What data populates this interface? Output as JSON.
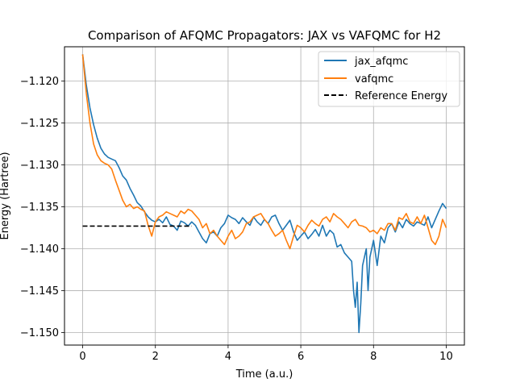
{
  "chart_data": {
    "type": "line",
    "title": "Comparison of AFQMC Propagators: JAX vs VAFQMC for H2",
    "xlabel": "Time (a.u.)",
    "ylabel": "Energy (Hartree)",
    "xlim": [
      -0.5,
      10.5
    ],
    "ylim": [
      -1.1515,
      -1.1159
    ],
    "xticks": [
      0,
      2,
      4,
      6,
      8,
      10
    ],
    "yticks": [
      -1.12,
      -1.125,
      -1.13,
      -1.135,
      -1.14,
      -1.145,
      -1.15
    ],
    "xtick_labels": [
      "0",
      "2",
      "4",
      "6",
      "8",
      "10"
    ],
    "ytick_labels": [
      "−1.120",
      "−1.125",
      "−1.130",
      "−1.135",
      "−1.140",
      "−1.145",
      "−1.150"
    ],
    "grid": true,
    "legend_position": "upper-right",
    "series": [
      {
        "name": "jax_afqmc",
        "color": "#1f77b4",
        "style": "solid",
        "x": [
          0,
          0.1,
          0.2,
          0.3,
          0.4,
          0.5,
          0.6,
          0.7,
          0.8,
          0.9,
          1.0,
          1.1,
          1.2,
          1.3,
          1.4,
          1.5,
          1.6,
          1.7,
          1.8,
          1.9,
          2.0,
          2.1,
          2.2,
          2.3,
          2.4,
          2.5,
          2.6,
          2.7,
          2.8,
          2.9,
          3.0,
          3.1,
          3.2,
          3.3,
          3.4,
          3.5,
          3.6,
          3.7,
          3.8,
          3.9,
          4.0,
          4.1,
          4.2,
          4.3,
          4.4,
          4.5,
          4.6,
          4.7,
          4.8,
          4.9,
          5.0,
          5.1,
          5.2,
          5.3,
          5.4,
          5.5,
          5.6,
          5.7,
          5.8,
          5.9,
          6.0,
          6.1,
          6.2,
          6.3,
          6.4,
          6.5,
          6.6,
          6.7,
          6.8,
          6.9,
          7.0,
          7.1,
          7.2,
          7.3,
          7.4,
          7.45,
          7.5,
          7.55,
          7.6,
          7.65,
          7.7,
          7.8,
          7.85,
          7.9,
          8.0,
          8.1,
          8.2,
          8.3,
          8.4,
          8.5,
          8.6,
          8.7,
          8.8,
          8.9,
          9.0,
          9.1,
          9.2,
          9.3,
          9.4,
          9.5,
          9.6,
          9.7,
          9.8,
          9.9,
          10.0
        ],
        "y": [
          -1.1168,
          -1.1205,
          -1.1232,
          -1.1252,
          -1.1268,
          -1.128,
          -1.1287,
          -1.1291,
          -1.1293,
          -1.1295,
          -1.1303,
          -1.1313,
          -1.1318,
          -1.1328,
          -1.1336,
          -1.1345,
          -1.1349,
          -1.1356,
          -1.1362,
          -1.1366,
          -1.1368,
          -1.1365,
          -1.1369,
          -1.1362,
          -1.1371,
          -1.1373,
          -1.1378,
          -1.1367,
          -1.1369,
          -1.1373,
          -1.1368,
          -1.1372,
          -1.138,
          -1.1388,
          -1.1393,
          -1.1382,
          -1.138,
          -1.1385,
          -1.1375,
          -1.137,
          -1.136,
          -1.1363,
          -1.1365,
          -1.137,
          -1.1363,
          -1.1368,
          -1.1372,
          -1.1362,
          -1.1368,
          -1.1372,
          -1.1365,
          -1.137,
          -1.1362,
          -1.136,
          -1.137,
          -1.1378,
          -1.1372,
          -1.1366,
          -1.138,
          -1.139,
          -1.1385,
          -1.138,
          -1.1388,
          -1.1383,
          -1.1377,
          -1.1385,
          -1.1372,
          -1.1385,
          -1.1378,
          -1.1382,
          -1.1398,
          -1.1395,
          -1.1405,
          -1.141,
          -1.1415,
          -1.145,
          -1.147,
          -1.144,
          -1.15,
          -1.1465,
          -1.142,
          -1.14,
          -1.145,
          -1.141,
          -1.139,
          -1.142,
          -1.1385,
          -1.1393,
          -1.1375,
          -1.137,
          -1.138,
          -1.1368,
          -1.1375,
          -1.1365,
          -1.137,
          -1.1373,
          -1.1368,
          -1.137,
          -1.1372,
          -1.1362,
          -1.1375,
          -1.1365,
          -1.1355,
          -1.1346,
          -1.1352
        ]
      },
      {
        "name": "vafqmc",
        "color": "#ff7f0e",
        "style": "solid",
        "x": [
          0,
          0.1,
          0.2,
          0.3,
          0.4,
          0.5,
          0.6,
          0.7,
          0.8,
          0.9,
          1.0,
          1.1,
          1.2,
          1.3,
          1.4,
          1.5,
          1.6,
          1.7,
          1.8,
          1.9,
          2.0,
          2.1,
          2.2,
          2.3,
          2.4,
          2.5,
          2.6,
          2.7,
          2.8,
          2.9,
          3.0,
          3.1,
          3.2,
          3.3,
          3.4,
          3.5,
          3.6,
          3.7,
          3.8,
          3.9,
          4.0,
          4.1,
          4.2,
          4.3,
          4.4,
          4.5,
          4.6,
          4.7,
          4.8,
          4.9,
          5.0,
          5.1,
          5.2,
          5.3,
          5.4,
          5.5,
          5.6,
          5.7,
          5.8,
          5.9,
          6.0,
          6.1,
          6.2,
          6.3,
          6.4,
          6.5,
          6.6,
          6.7,
          6.8,
          6.9,
          7.0,
          7.1,
          7.2,
          7.3,
          7.4,
          7.5,
          7.6,
          7.7,
          7.8,
          7.9,
          8.0,
          8.1,
          8.2,
          8.3,
          8.4,
          8.5,
          8.6,
          8.7,
          8.8,
          8.9,
          9.0,
          9.1,
          9.2,
          9.3,
          9.4,
          9.5,
          9.6,
          9.7,
          9.8,
          9.9,
          10.0
        ],
        "y": [
          -1.1168,
          -1.1215,
          -1.125,
          -1.1275,
          -1.1288,
          -1.1295,
          -1.1298,
          -1.13,
          -1.1305,
          -1.1318,
          -1.133,
          -1.1342,
          -1.135,
          -1.1347,
          -1.1352,
          -1.135,
          -1.1353,
          -1.1355,
          -1.1372,
          -1.1385,
          -1.1368,
          -1.1362,
          -1.136,
          -1.1356,
          -1.1358,
          -1.136,
          -1.1362,
          -1.1355,
          -1.1358,
          -1.1353,
          -1.1355,
          -1.136,
          -1.1365,
          -1.1375,
          -1.137,
          -1.1382,
          -1.1378,
          -1.1385,
          -1.139,
          -1.1395,
          -1.1385,
          -1.1378,
          -1.1388,
          -1.1385,
          -1.138,
          -1.137,
          -1.1368,
          -1.1362,
          -1.136,
          -1.1358,
          -1.1365,
          -1.137,
          -1.1378,
          -1.1385,
          -1.1382,
          -1.1378,
          -1.139,
          -1.14,
          -1.1385,
          -1.1372,
          -1.1375,
          -1.138,
          -1.1372,
          -1.1366,
          -1.137,
          -1.1373,
          -1.1365,
          -1.1362,
          -1.1368,
          -1.1358,
          -1.1362,
          -1.1365,
          -1.137,
          -1.1375,
          -1.1368,
          -1.1365,
          -1.1372,
          -1.1373,
          -1.1375,
          -1.138,
          -1.1378,
          -1.1382,
          -1.1375,
          -1.1378,
          -1.137,
          -1.137,
          -1.1378,
          -1.1363,
          -1.1365,
          -1.1358,
          -1.1368,
          -1.137,
          -1.1362,
          -1.137,
          -1.136,
          -1.1375,
          -1.139,
          -1.1395,
          -1.1385,
          -1.1365,
          -1.1375
        ]
      },
      {
        "name": "Reference Energy",
        "color": "#000000",
        "style": "dashed",
        "x": [
          0,
          3.0
        ],
        "y": [
          -1.1373,
          -1.1373
        ]
      }
    ]
  }
}
